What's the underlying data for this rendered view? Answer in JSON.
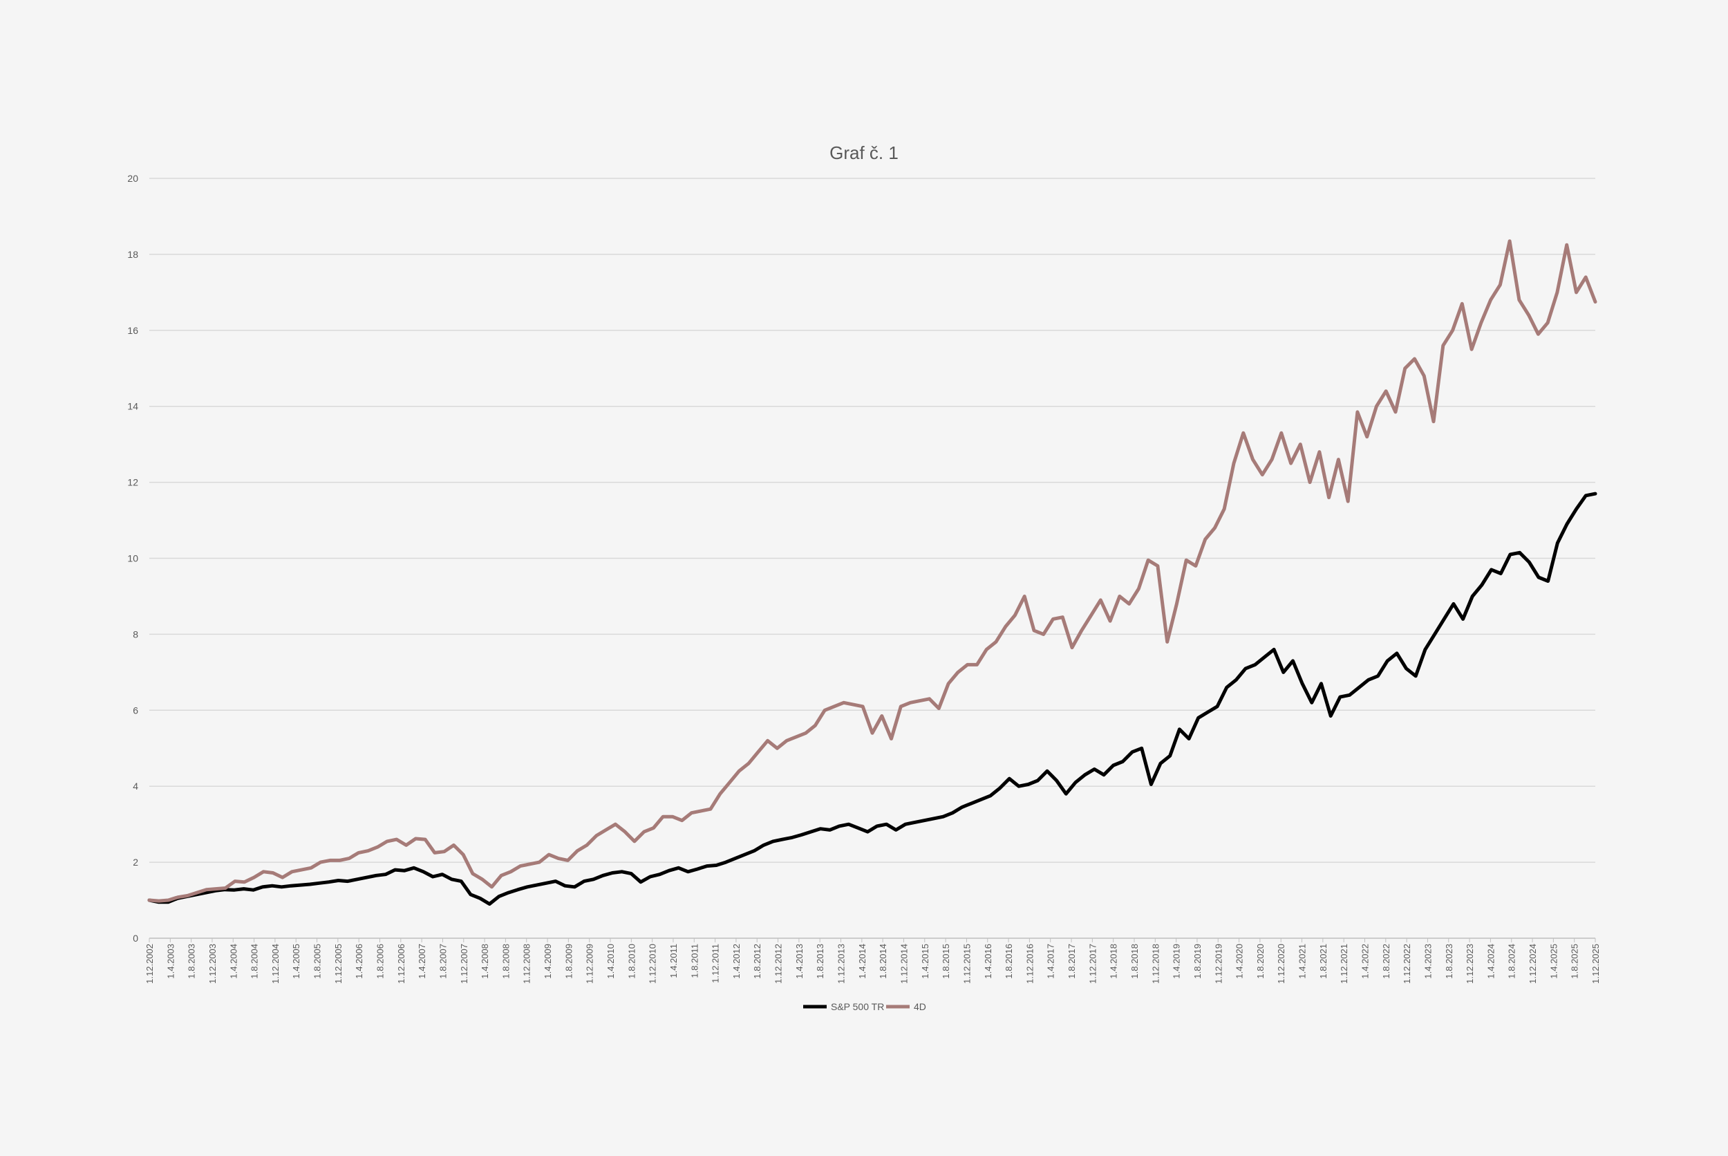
{
  "chart_data": {
    "type": "line",
    "title": "Graf č. 1",
    "xlabel": "",
    "ylabel": "",
    "ylim": [
      0,
      20
    ],
    "yticks": [
      "0",
      "2",
      "4",
      "6",
      "8",
      "10",
      "12",
      "14",
      "16",
      "18",
      "20"
    ],
    "xtick_labels": [
      "1.12.2002",
      "1.4.2003",
      "1.8.2003",
      "1.12.2003",
      "1.4.2004",
      "1.8.2004",
      "1.12.2004",
      "1.4.2005",
      "1.8.2005",
      "1.12.2005",
      "1.4.2006",
      "1.8.2006",
      "1.12.2006",
      "1.4.2007",
      "1.8.2007",
      "1.12.2007",
      "1.4.2008",
      "1.8.2008",
      "1.12.2008",
      "1.4.2009",
      "1.8.2009",
      "1.12.2009",
      "1.4.2010",
      "1.8.2010",
      "1.12.2010",
      "1.4.2011",
      "1.8.2011",
      "1.12.2011",
      "1.4.2012",
      "1.8.2012",
      "1.12.2012",
      "1.4.2013",
      "1.8.2013",
      "1.12.2013",
      "1.4.2014",
      "1.8.2014",
      "1.12.2014",
      "1.4.2015",
      "1.8.2015",
      "1.12.2015",
      "1.4.2016",
      "1.8.2016",
      "1.12.2016",
      "1.4.2017",
      "1.8.2017",
      "1.12.2017",
      "1.4.2018",
      "1.8.2018",
      "1.12.2018",
      "1.4.2019",
      "1.8.2019",
      "1.12.2019",
      "1.4.2020",
      "1.8.2020",
      "1.12.2020",
      "1.4.2021",
      "1.8.2021",
      "1.12.2021",
      "1.4.2022",
      "1.8.2022",
      "1.12.2022",
      "1.4.2023",
      "1.8.2023",
      "1.12.2023",
      "1.4.2024",
      "1.8.2024",
      "1.12.2024",
      "1.4.2025",
      "1.8.2025",
      "1.12.2025"
    ],
    "grid": true,
    "legend_position": "bottom",
    "series": [
      {
        "name": "S&P 500 TR",
        "color": "#000000",
        "values": [
          1.0,
          0.95,
          0.95,
          1.05,
          1.1,
          1.15,
          1.2,
          1.25,
          1.28,
          1.27,
          1.3,
          1.27,
          1.35,
          1.38,
          1.35,
          1.38,
          1.4,
          1.42,
          1.45,
          1.48,
          1.52,
          1.5,
          1.55,
          1.6,
          1.65,
          1.68,
          1.8,
          1.78,
          1.85,
          1.75,
          1.62,
          1.68,
          1.55,
          1.5,
          1.15,
          1.05,
          0.9,
          1.1,
          1.2,
          1.28,
          1.35,
          1.4,
          1.45,
          1.5,
          1.38,
          1.35,
          1.5,
          1.55,
          1.65,
          1.72,
          1.75,
          1.7,
          1.48,
          1.62,
          1.68,
          1.78,
          1.85,
          1.75,
          1.82,
          1.9,
          1.92,
          2.0,
          2.1,
          2.2,
          2.3,
          2.45,
          2.55,
          2.6,
          2.65,
          2.72,
          2.8,
          2.88,
          2.85,
          2.95,
          3.0,
          2.9,
          2.8,
          2.95,
          3.0,
          2.85,
          3.0,
          3.05,
          3.1,
          3.15,
          3.2,
          3.3,
          3.45,
          3.55,
          3.65,
          3.75,
          3.95,
          4.2,
          4.0,
          4.05,
          4.15,
          4.4,
          4.15,
          3.8,
          4.1,
          4.3,
          4.45,
          4.3,
          4.55,
          4.65,
          4.9,
          5.0,
          4.05,
          4.6,
          4.8,
          5.5,
          5.25,
          5.8,
          5.95,
          6.1,
          6.6,
          6.8,
          7.1,
          7.2,
          7.4,
          7.6,
          7.0,
          7.3,
          6.7,
          6.2,
          6.7,
          5.85,
          6.35,
          6.4,
          6.6,
          6.8,
          6.9,
          7.3,
          7.5,
          7.1,
          6.9,
          7.6,
          8.0,
          8.4,
          8.8,
          8.4,
          9.0,
          9.3,
          9.7,
          9.6,
          10.1,
          10.15,
          9.9,
          9.5,
          9.4,
          10.4,
          10.9,
          11.3,
          11.65,
          11.7
        ],
        "note": "monthly series from 1.12.2002 to 1.12.2025 shown as sampled points"
      },
      {
        "name": "4D",
        "color": "#a67b78",
        "values": [
          1.0,
          0.98,
          1.0,
          1.08,
          1.12,
          1.2,
          1.28,
          1.3,
          1.32,
          1.5,
          1.48,
          1.6,
          1.75,
          1.72,
          1.6,
          1.75,
          1.8,
          1.85,
          2.0,
          2.05,
          2.05,
          2.1,
          2.25,
          2.3,
          2.4,
          2.55,
          2.6,
          2.45,
          2.62,
          2.6,
          2.25,
          2.28,
          2.45,
          2.2,
          1.7,
          1.55,
          1.35,
          1.65,
          1.75,
          1.9,
          1.95,
          2.0,
          2.2,
          2.1,
          2.05,
          2.3,
          2.45,
          2.7,
          2.85,
          3.0,
          2.8,
          2.55,
          2.8,
          2.9,
          3.2,
          3.2,
          3.1,
          3.3,
          3.35,
          3.4,
          3.8,
          4.1,
          4.4,
          4.6,
          4.9,
          5.2,
          5.0,
          5.2,
          5.3,
          5.4,
          5.6,
          6.0,
          6.1,
          6.2,
          6.15,
          6.1,
          5.4,
          5.85,
          5.25,
          6.1,
          6.2,
          6.25,
          6.3,
          6.05,
          6.7,
          7.0,
          7.2,
          7.2,
          7.6,
          7.8,
          8.2,
          8.5,
          9.0,
          8.1,
          8.0,
          8.4,
          8.45,
          7.65,
          8.1,
          8.5,
          8.9,
          8.35,
          9.0,
          8.8,
          9.2,
          9.95,
          9.8,
          7.8,
          8.8,
          9.95,
          9.8,
          10.5,
          10.8,
          11.3,
          12.5,
          13.3,
          12.6,
          12.2,
          12.6,
          13.3,
          12.5,
          13.0,
          12.0,
          12.8,
          11.6,
          12.6,
          11.5,
          13.85,
          13.2,
          14.0,
          14.4,
          13.85,
          15.0,
          15.25,
          14.8,
          13.6,
          15.6,
          16.0,
          16.7,
          15.5,
          16.2,
          16.8,
          17.2,
          18.35,
          16.8,
          16.4,
          15.9,
          16.2,
          17.0,
          18.25,
          17.0,
          17.4,
          16.75
        ],
        "note": "monthly series from 1.12.2002 to 1.12.2025 shown as sampled points"
      }
    ]
  }
}
